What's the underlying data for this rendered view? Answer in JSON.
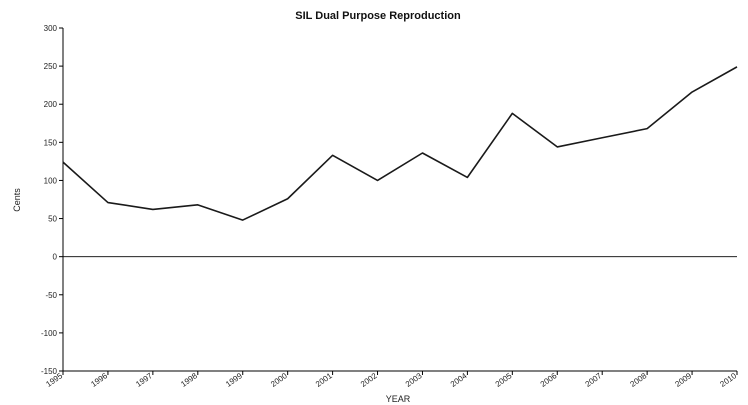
{
  "chart_data": {
    "type": "line",
    "title": "SIL Dual Purpose Reproduction",
    "xlabel": "YEAR",
    "ylabel": "Cents",
    "categories": [
      "1995",
      "1996",
      "1997",
      "1998",
      "1999",
      "2000",
      "2001",
      "2002",
      "2003",
      "2004",
      "2005",
      "2006",
      "2007",
      "2008",
      "2009",
      "2010"
    ],
    "series": [
      {
        "values": [
          124,
          71,
          62,
          68,
          48,
          76,
          133,
          100,
          136,
          104,
          188,
          144,
          156,
          168,
          216,
          249
        ]
      }
    ],
    "ylim": [
      -150,
      300
    ],
    "yticks": [
      300,
      250,
      200,
      150,
      100,
      50,
      0,
      -50,
      -100,
      -150
    ],
    "grid": false,
    "reference_line": 0,
    "colors": {
      "series": "#1a1a1a",
      "axis": "#000000"
    }
  }
}
